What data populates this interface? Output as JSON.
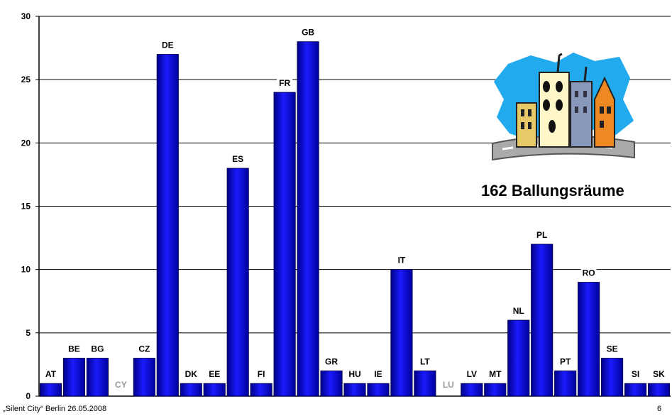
{
  "chart_data": {
    "type": "bar",
    "categories": [
      "AT",
      "BE",
      "BG",
      "CY",
      "CZ",
      "DE",
      "DK",
      "EE",
      "ES",
      "FI",
      "FR",
      "GB",
      "GR",
      "HU",
      "IE",
      "IT",
      "LT",
      "LU",
      "LV",
      "MT",
      "NL",
      "PL",
      "PT",
      "RO",
      "SE",
      "SI",
      "SK"
    ],
    "values": [
      1,
      3,
      3,
      0,
      3,
      27,
      1,
      1,
      18,
      1,
      24,
      28,
      2,
      1,
      1,
      10,
      2,
      0,
      1,
      1,
      6,
      12,
      2,
      9,
      3,
      1,
      1
    ],
    "ylim": [
      0,
      30
    ],
    "yticks": [
      0,
      5,
      10,
      15,
      20,
      25,
      30
    ],
    "grid": true,
    "bar_color": "#0000cc",
    "zero_label_color": "#999999",
    "annotation": "162 Ballungsräume"
  },
  "footer": {
    "text": "„Silent City“ Berlin 26.05.2008",
    "page": "6"
  },
  "clipart": {
    "icon": "city-buildings-icon"
  }
}
